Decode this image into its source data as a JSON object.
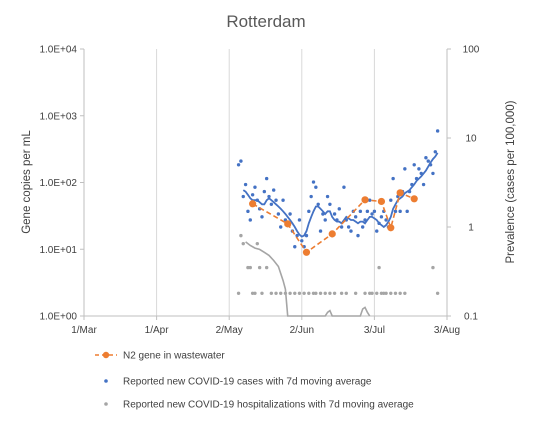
{
  "chart_data": {
    "type": "line",
    "title": "Rotterdam",
    "ylabel": "Gene copies per mL",
    "y2label": "Prevalence (cases per 100,000)",
    "y_scale": "log",
    "y2_scale": "log",
    "ylim": [
      1,
      10000
    ],
    "y2lim": [
      0.1,
      100
    ],
    "xlim": [
      "2020-03-01",
      "2020-08-03"
    ],
    "x_ticks": [
      "1/Mar",
      "1/Apr",
      "2/May",
      "2/Jun",
      "3/Jul",
      "3/Aug"
    ],
    "y_ticks": [
      "1.0E+00",
      "1.0E+01",
      "1.0E+02",
      "1.0E+03",
      "1.0E+04"
    ],
    "y2_ticks": [
      "0.1",
      "1",
      "10",
      "100"
    ],
    "grid": "vertical",
    "legend_position": "bottom",
    "colors": {
      "wastewater": "#ED7D31",
      "cases": "#4472C4",
      "hospital": "#A5A5A5"
    },
    "series": [
      {
        "name": "N2 gene in wastewater",
        "axis": "left",
        "style": "line-dashed-markers",
        "x": [
          "2020-05-12",
          "2020-05-27",
          "2020-06-04",
          "2020-06-15",
          "2020-06-29",
          "2020-07-06",
          "2020-07-10",
          "2020-07-14",
          "2020-07-20"
        ],
        "y": [
          48,
          24,
          9,
          17,
          55,
          52,
          21,
          70,
          57
        ]
      },
      {
        "name": "Reported new COVID-19 cases with 7d moving average",
        "axis": "right",
        "points_x": [
          "2020-05-06",
          "2020-05-07",
          "2020-05-08",
          "2020-05-09",
          "2020-05-10",
          "2020-05-11",
          "2020-05-12",
          "2020-05-13",
          "2020-05-14",
          "2020-05-15",
          "2020-05-16",
          "2020-05-17",
          "2020-05-18",
          "2020-05-19",
          "2020-05-20",
          "2020-05-21",
          "2020-05-22",
          "2020-05-23",
          "2020-05-24",
          "2020-05-25",
          "2020-05-26",
          "2020-05-27",
          "2020-05-28",
          "2020-05-29",
          "2020-05-30",
          "2020-05-31",
          "2020-06-01",
          "2020-06-02",
          "2020-06-03",
          "2020-06-04",
          "2020-06-05",
          "2020-06-06",
          "2020-06-07",
          "2020-06-08",
          "2020-06-09",
          "2020-06-10",
          "2020-06-11",
          "2020-06-12",
          "2020-06-13",
          "2020-06-14",
          "2020-06-15",
          "2020-06-16",
          "2020-06-17",
          "2020-06-18",
          "2020-06-19",
          "2020-06-20",
          "2020-06-21",
          "2020-06-22",
          "2020-06-23",
          "2020-06-24",
          "2020-06-25",
          "2020-06-26",
          "2020-06-27",
          "2020-06-28",
          "2020-06-29",
          "2020-06-30",
          "2020-07-01",
          "2020-07-02",
          "2020-07-03",
          "2020-07-04",
          "2020-07-05",
          "2020-07-06",
          "2020-07-07",
          "2020-07-08",
          "2020-07-09",
          "2020-07-10",
          "2020-07-11",
          "2020-07-12",
          "2020-07-13",
          "2020-07-14",
          "2020-07-15",
          "2020-07-16",
          "2020-07-17",
          "2020-07-18",
          "2020-07-19",
          "2020-07-20",
          "2020-07-21",
          "2020-07-22",
          "2020-07-23",
          "2020-07-24",
          "2020-07-25",
          "2020-07-26",
          "2020-07-27",
          "2020-07-28",
          "2020-07-29",
          "2020-07-30"
        ],
        "points_y": [
          5.0,
          5.5,
          2.2,
          3.0,
          1.5,
          1.2,
          2.3,
          2.8,
          2.0,
          1.6,
          1.3,
          2.5,
          3.5,
          2.2,
          1.8,
          2.6,
          2.0,
          1.4,
          1.0,
          2.0,
          1.2,
          1.1,
          1.4,
          0.9,
          0.6,
          0.8,
          1.2,
          0.7,
          0.6,
          0.8,
          1.5,
          2.2,
          3.2,
          2.8,
          1.8,
          0.9,
          1.4,
          1.2,
          2.2,
          1.8,
          0.8,
          1.4,
          1.2,
          1.6,
          1.0,
          2.8,
          1.2,
          1.0,
          0.9,
          1.5,
          1.3,
          0.8,
          1.5,
          1.0,
          1.2,
          1.5,
          2.0,
          1.4,
          1.5,
          0.9,
          1.1,
          1.3,
          1.5,
          1.2,
          1.0,
          2.0,
          3.5,
          1.5,
          2.2,
          1.5,
          2.5,
          4.5,
          1.5,
          2.5,
          3.0,
          5.0,
          3.5,
          4.5,
          4.0,
          3.0,
          6.0,
          5.5,
          5.0,
          4.0,
          7.0,
          12.0
        ],
        "avg_x": [
          "2020-05-08",
          "2020-05-09",
          "2020-05-10",
          "2020-05-11",
          "2020-05-12",
          "2020-05-13",
          "2020-05-14",
          "2020-05-15",
          "2020-05-16",
          "2020-05-17",
          "2020-05-18",
          "2020-05-19",
          "2020-05-20",
          "2020-05-21",
          "2020-05-22",
          "2020-05-23",
          "2020-05-24",
          "2020-05-25",
          "2020-05-26",
          "2020-05-27",
          "2020-05-28",
          "2020-05-29",
          "2020-05-30",
          "2020-05-31",
          "2020-06-01",
          "2020-06-02",
          "2020-06-03",
          "2020-06-04",
          "2020-06-05",
          "2020-06-06",
          "2020-06-07",
          "2020-06-08",
          "2020-06-09",
          "2020-06-10",
          "2020-06-11",
          "2020-06-12",
          "2020-06-13",
          "2020-06-14",
          "2020-06-15",
          "2020-06-16",
          "2020-06-17",
          "2020-06-18",
          "2020-06-19",
          "2020-06-20",
          "2020-06-21",
          "2020-06-22",
          "2020-06-23",
          "2020-06-24",
          "2020-06-25",
          "2020-06-26",
          "2020-06-27",
          "2020-06-28",
          "2020-06-29",
          "2020-06-30",
          "2020-07-01",
          "2020-07-02",
          "2020-07-03",
          "2020-07-04",
          "2020-07-05",
          "2020-07-06",
          "2020-07-07",
          "2020-07-08",
          "2020-07-09",
          "2020-07-10",
          "2020-07-11",
          "2020-07-12",
          "2020-07-13",
          "2020-07-14",
          "2020-07-15",
          "2020-07-16",
          "2020-07-17",
          "2020-07-18",
          "2020-07-19",
          "2020-07-20",
          "2020-07-21",
          "2020-07-22",
          "2020-07-23",
          "2020-07-24",
          "2020-07-25",
          "2020-07-26",
          "2020-07-27",
          "2020-07-28",
          "2020-07-29",
          "2020-07-30"
        ],
        "avg_y": [
          2.6,
          2.5,
          2.3,
          2.1,
          2.0,
          2.0,
          2.0,
          1.9,
          1.8,
          1.8,
          2.0,
          2.1,
          2.0,
          1.9,
          1.8,
          1.7,
          1.6,
          1.5,
          1.4,
          1.3,
          1.2,
          1.1,
          1.0,
          0.9,
          0.82,
          0.78,
          0.8,
          0.9,
          1.1,
          1.3,
          1.5,
          1.7,
          1.7,
          1.6,
          1.5,
          1.4,
          1.5,
          1.5,
          1.3,
          1.2,
          1.15,
          1.15,
          1.1,
          1.2,
          1.3,
          1.25,
          1.2,
          1.2,
          1.15,
          1.1,
          1.15,
          1.15,
          1.1,
          1.2,
          1.3,
          1.3,
          1.25,
          1.2,
          1.1,
          1.05,
          1.0,
          1.05,
          1.15,
          1.3,
          1.6,
          1.8,
          2.0,
          2.1,
          2.2,
          2.4,
          2.5,
          2.6,
          2.8,
          3.0,
          3.3,
          3.5,
          3.7,
          4.0,
          4.3,
          4.8,
          5.3,
          5.8,
          6.2,
          6.8
        ]
      },
      {
        "name": "Reported new COVID-19 hospitalizations with 7d moving average",
        "axis": "right",
        "points_x": [
          "2020-05-06",
          "2020-05-07",
          "2020-05-08",
          "2020-05-10",
          "2020-05-11",
          "2020-05-12",
          "2020-05-13",
          "2020-05-14",
          "2020-05-15",
          "2020-05-16",
          "2020-05-18",
          "2020-05-20",
          "2020-05-22",
          "2020-05-24",
          "2020-05-26",
          "2020-05-28",
          "2020-05-30",
          "2020-06-01",
          "2020-06-03",
          "2020-06-05",
          "2020-06-07",
          "2020-06-08",
          "2020-06-10",
          "2020-06-12",
          "2020-06-14",
          "2020-06-16",
          "2020-06-19",
          "2020-06-21",
          "2020-06-25",
          "2020-06-29",
          "2020-07-01",
          "2020-07-02",
          "2020-07-04",
          "2020-07-05",
          "2020-07-06",
          "2020-07-07",
          "2020-07-08",
          "2020-07-10",
          "2020-07-12",
          "2020-07-14",
          "2020-07-16",
          "2020-07-28",
          "2020-07-30"
        ],
        "points_y": [
          0.18,
          0.8,
          0.65,
          0.35,
          0.35,
          0.18,
          0.18,
          0.65,
          0.35,
          0.18,
          0.35,
          0.18,
          0.18,
          0.18,
          0.18,
          0.18,
          0.18,
          0.18,
          0.18,
          0.18,
          0.18,
          0.18,
          0.18,
          0.18,
          0.18,
          0.18,
          0.18,
          0.18,
          0.18,
          0.18,
          0.18,
          0.18,
          0.18,
          0.35,
          0.18,
          0.18,
          0.18,
          0.18,
          0.18,
          0.18,
          0.18,
          0.35,
          0.18
        ],
        "avg_x": [
          "2020-05-09",
          "2020-05-11",
          "2020-05-13",
          "2020-05-15",
          "2020-05-17",
          "2020-05-19",
          "2020-05-21",
          "2020-05-23",
          "2020-05-25",
          "2020-05-26",
          "2020-05-27",
          "2020-06-12",
          "2020-06-13",
          "2020-06-14",
          "2020-06-15",
          "2020-06-27",
          "2020-06-28",
          "2020-06-29",
          "2020-06-30",
          "2020-07-01"
        ],
        "avg_y": [
          0.68,
          0.62,
          0.58,
          0.56,
          0.52,
          0.48,
          0.42,
          0.36,
          0.25,
          0.2,
          0.1,
          0.1,
          0.11,
          0.115,
          0.1,
          0.1,
          0.12,
          0.125,
          0.11,
          0.1
        ]
      }
    ]
  }
}
